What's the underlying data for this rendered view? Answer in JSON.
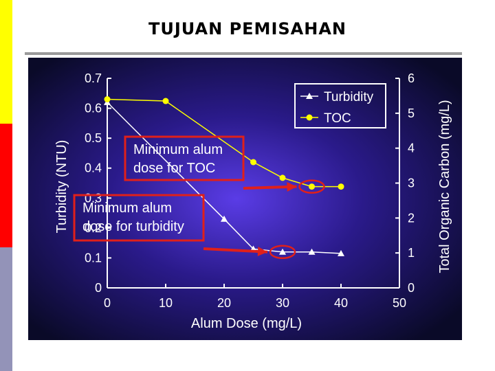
{
  "slide": {
    "title": "TUJUAN PEMISAHAN",
    "accent_colors": [
      "#ffff00",
      "#ff0000",
      "#9393b8"
    ]
  },
  "chart_data": {
    "type": "line",
    "xlabel": "Alum Dose (mg/L)",
    "ylabel_left": "Turbidity (NTU)",
    "ylabel_right": "Total Organic Carbon (mg/L)",
    "xlim": [
      0,
      50
    ],
    "ylim_left": [
      0,
      0.7
    ],
    "ylim_right": [
      0,
      6
    ],
    "x_ticks": [
      "0",
      "10",
      "20",
      "30",
      "40",
      "50"
    ],
    "y_left_ticks": [
      "0",
      "0.1",
      "0.2",
      "0.3",
      "0.4",
      "0.5",
      "0.6",
      "0.7"
    ],
    "y_right_ticks": [
      "0",
      "1",
      "2",
      "3",
      "4",
      "5",
      "6"
    ],
    "legend_position": "top-right",
    "grid": false,
    "series": [
      {
        "name": "Turbidity",
        "axis": "left",
        "marker": "triangle",
        "color": "#ffffff",
        "x": [
          0,
          20,
          25,
          30,
          35,
          40
        ],
        "y": [
          0.62,
          0.23,
          0.13,
          0.12,
          0.12,
          0.115
        ]
      },
      {
        "name": "TOC",
        "axis": "right",
        "marker": "circle",
        "color": "#ffff00",
        "x": [
          0,
          10,
          25,
          30,
          35,
          40
        ],
        "y": [
          5.4,
          5.35,
          3.6,
          3.15,
          2.9,
          2.9
        ]
      }
    ],
    "annotations": [
      {
        "lines": [
          "Minimum alum",
          "dose for TOC"
        ],
        "points_to": {
          "series": "TOC",
          "x": 35
        }
      },
      {
        "lines": [
          "Minimum alum",
          "dose for turbidity"
        ],
        "points_to": {
          "series": "Turbidity",
          "x": 30
        }
      }
    ]
  }
}
